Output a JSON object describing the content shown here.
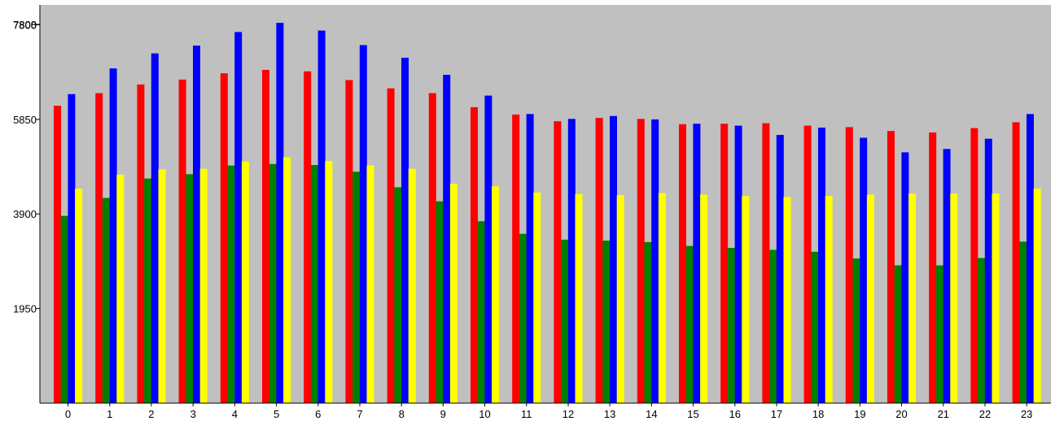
{
  "chart_data": {
    "type": "bar",
    "title": "",
    "xlabel": "",
    "ylabel": "",
    "ylim": [
      0,
      7808
    ],
    "y_ticks": [
      1950,
      3900,
      5850,
      7800,
      7808
    ],
    "legend": "none",
    "grid": false,
    "background_color": "#c0c0c0",
    "categories": [
      "0",
      "1",
      "2",
      "3",
      "4",
      "5",
      "6",
      "7",
      "8",
      "9",
      "10",
      "11",
      "12",
      "13",
      "14",
      "15",
      "16",
      "17",
      "18",
      "19",
      "20",
      "21",
      "22",
      "23"
    ],
    "series": [
      {
        "color": "#ff0000",
        "values": [
          6130,
          6390,
          6570,
          6670,
          6800,
          6870,
          6840,
          6660,
          6490,
          6390,
          6100,
          5950,
          5810,
          5880,
          5860,
          5750,
          5760,
          5770,
          5720,
          5690,
          5610,
          5580,
          5670,
          5790
        ]
      },
      {
        "color": "#008000",
        "values": [
          3860,
          4230,
          4630,
          4720,
          4900,
          4930,
          4910,
          4770,
          4450,
          4160,
          3750,
          3490,
          3370,
          3350,
          3320,
          3240,
          3200,
          3160,
          3120,
          2980,
          2840,
          2840,
          2990,
          3330
        ]
      },
      {
        "color": "#0000ff",
        "values": [
          6370,
          6900,
          7210,
          7370,
          7650,
          7840,
          7680,
          7380,
          7120,
          6770,
          6340,
          5960,
          5860,
          5920,
          5850,
          5760,
          5720,
          5530,
          5680,
          5470,
          5170,
          5240,
          5450,
          5960
        ]
      },
      {
        "color": "#ffff00",
        "values": [
          4420,
          4710,
          4820,
          4830,
          4980,
          5070,
          4990,
          4900,
          4830,
          4520,
          4470,
          4340,
          4310,
          4290,
          4330,
          4300,
          4270,
          4250,
          4270,
          4300,
          4320,
          4320,
          4320,
          4420
        ]
      }
    ]
  }
}
